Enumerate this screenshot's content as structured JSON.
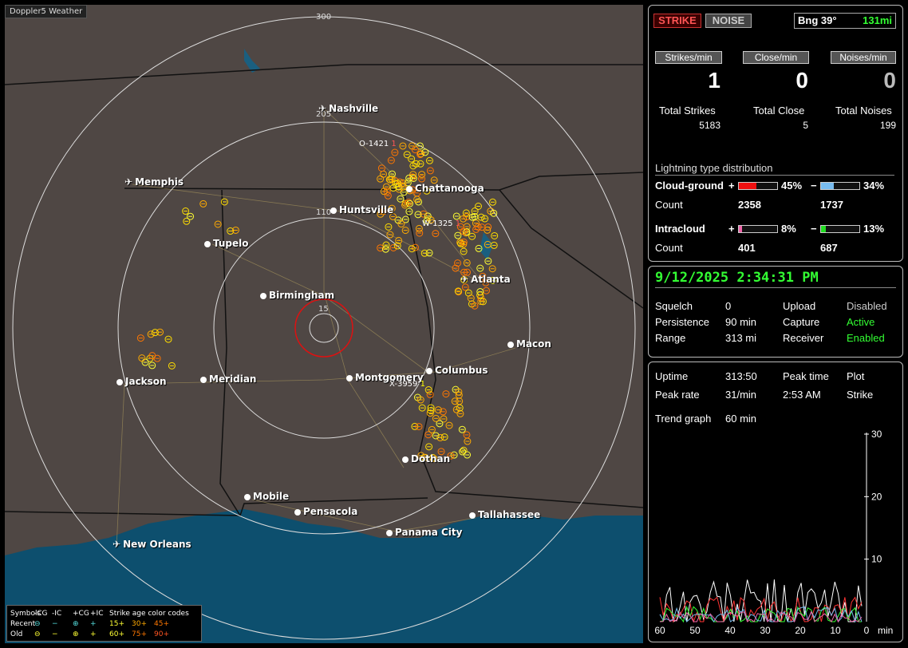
{
  "map": {
    "title": "Doppler5 Weather",
    "ring_labels": [
      "300",
      "205",
      "110",
      "15"
    ],
    "cities": [
      {
        "name": "Nashville",
        "icon": "plane-icon"
      },
      {
        "name": "Memphis",
        "icon": "plane-icon"
      },
      {
        "name": "Chattanooga",
        "icon": "dot-icon"
      },
      {
        "name": "Huntsville",
        "icon": "dot-icon"
      },
      {
        "name": "Tupelo",
        "icon": "dot-icon"
      },
      {
        "name": "Atlanta",
        "icon": "plane-icon"
      },
      {
        "name": "Birmingham",
        "icon": "dot-icon"
      },
      {
        "name": "Macon",
        "icon": "dot-icon"
      },
      {
        "name": "Columbus",
        "icon": "dot-icon"
      },
      {
        "name": "Jackson",
        "icon": "dot-icon"
      },
      {
        "name": "Meridian",
        "icon": "dot-icon"
      },
      {
        "name": "Montgomery",
        "icon": "dot-icon"
      },
      {
        "name": "Dothan",
        "icon": "dot-icon"
      },
      {
        "name": "Mobile",
        "icon": "dot-icon"
      },
      {
        "name": "Pensacola",
        "icon": "dot-icon"
      },
      {
        "name": "Tallahassee",
        "icon": "dot-icon"
      },
      {
        "name": "Panama City",
        "icon": "dot-icon"
      },
      {
        "name": "New Orleans",
        "icon": "plane-icon"
      }
    ],
    "sensors": [
      "O-1421",
      "1",
      "W-1325",
      "1",
      "X-3959",
      "1"
    ],
    "legend": {
      "header": [
        "Symbols",
        "-CG",
        "-IC",
        "+CG",
        "+IC",
        "Strike age color codes"
      ],
      "recent": [
        "Recent",
        "⊖",
        "−",
        "⊕",
        "+",
        "15+",
        "30+",
        "45+"
      ],
      "old": [
        "Old",
        "⊖",
        "−",
        "⊕",
        "+",
        "60+",
        "75+",
        "90+"
      ],
      "colors": {
        "15+": "#ffff33",
        "30+": "#ffaa00",
        "45+": "#ff7700",
        "60+": "#ffff33",
        "75+": "#ff7700",
        "90+": "#ff5522"
      }
    }
  },
  "top_panel": {
    "strike_button": "STRIKE",
    "noise_button": "NOISE",
    "bearing": "Bng 39°",
    "distance": "131mi",
    "strikes_min_label": "Strikes/min",
    "close_min_label": "Close/min",
    "noises_min_label": "Noises/min",
    "strikes_min": "1",
    "close_min": "0",
    "noises_min": "0",
    "total_strikes_label": "Total Strikes",
    "total_close_label": "Total Close",
    "total_noises_label": "Total Noises",
    "total_strikes": "5183",
    "total_close": "5",
    "total_noises": "199",
    "distribution_title": "Lightning type distribution",
    "cloud_ground_label": "Cloud-ground",
    "intracloud_label": "Intracloud",
    "count_label": "Count",
    "plus": "+",
    "minus": "−",
    "cg_plus_pct": "45%",
    "cg_minus_pct": "34%",
    "cg_plus_count": "2358",
    "cg_minus_count": "1737",
    "ic_plus_pct": "8%",
    "ic_minus_pct": "13%",
    "ic_plus_count": "401",
    "ic_minus_count": "687",
    "cg_plus_fraction": 0.45,
    "cg_minus_fraction": 0.34,
    "ic_plus_fraction": 0.08,
    "ic_minus_fraction": 0.13,
    "colors": {
      "cg_plus": "#ee1111",
      "cg_minus": "#77bbee",
      "ic_plus": "#ee66aa",
      "ic_minus": "#22dd22"
    }
  },
  "mid_panel": {
    "datetime": "9/12/2025 2:34:31 PM",
    "squelch_label": "Squelch",
    "squelch": "0",
    "persistence_label": "Persistence",
    "persistence": "90 min",
    "range_label": "Range",
    "range": "313 mi",
    "upload_label": "Upload",
    "upload": "Disabled",
    "capture_label": "Capture",
    "capture": "Active",
    "receiver_label": "Receiver",
    "receiver": "Enabled"
  },
  "bottom_panel": {
    "uptime_label": "Uptime",
    "uptime": "313:50",
    "peak_time_label": "Peak time",
    "peak_time": "2:53 AM",
    "plot_label": "Plot",
    "plot": "Strike",
    "peak_rate_label": "Peak rate",
    "peak_rate": "31/min",
    "trend_label": "Trend graph",
    "trend": "60 min",
    "y_ticks": [
      "30",
      "20",
      "10"
    ],
    "x_ticks": [
      "60",
      "50",
      "40",
      "30",
      "20",
      "10",
      "0"
    ],
    "x_unit": "min"
  }
}
